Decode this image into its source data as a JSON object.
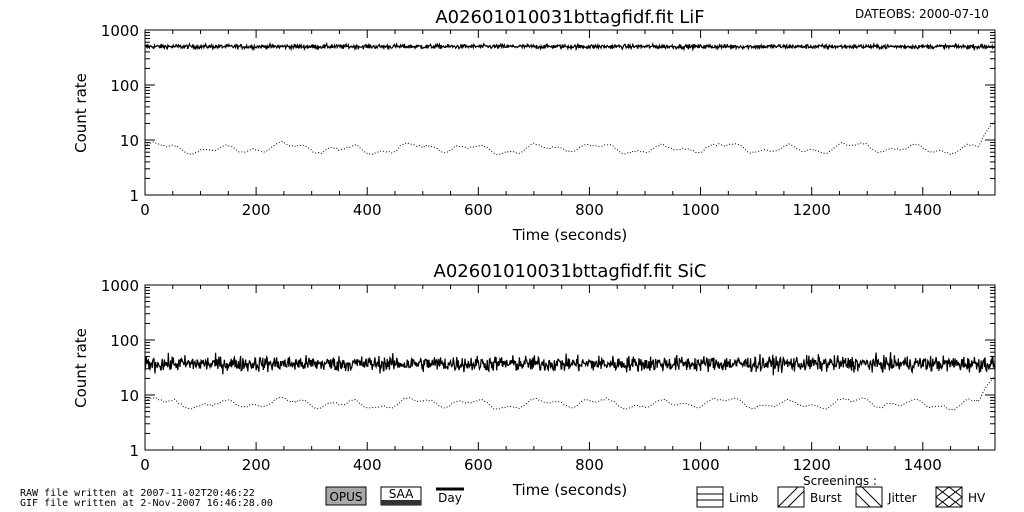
{
  "header": {
    "dateobs": "DATEOBS: 2000-07-10"
  },
  "chart_data": [
    {
      "type": "line",
      "title": "A02601010031bttagfidf.fit  LiF",
      "xlabel": "Time (seconds)",
      "ylabel": "Count rate",
      "yscale": "log",
      "xlim": [
        0,
        1530
      ],
      "ylim": [
        1,
        1000
      ],
      "x_ticks": [
        "0",
        "200",
        "400",
        "600",
        "800",
        "1000",
        "1200",
        "1400"
      ],
      "y_ticks": [
        "1",
        "10",
        "100",
        "1000"
      ],
      "series": [
        {
          "style": "solid",
          "approx_level": 500,
          "scatter": 0.04
        },
        {
          "style": "dotted",
          "approx_level": 7,
          "scatter": 0.1
        }
      ]
    },
    {
      "type": "line",
      "title": "A02601010031bttagfidf.fit  SiC",
      "xlabel": "Time (seconds)",
      "ylabel": "Count rate",
      "yscale": "log",
      "xlim": [
        0,
        1530
      ],
      "ylim": [
        1,
        1000
      ],
      "x_ticks": [
        "0",
        "200",
        "400",
        "600",
        "800",
        "1000",
        "1200",
        "1400"
      ],
      "y_ticks": [
        "1",
        "10",
        "100",
        "1000"
      ],
      "series": [
        {
          "style": "solid",
          "approx_level": 37,
          "scatter": 0.14
        },
        {
          "style": "dotted",
          "approx_level": 7,
          "scatter": 0.1
        }
      ]
    }
  ],
  "footer": {
    "raw_file": "RAW file written at 2007-11-02T20:46:22",
    "gif_file": "GIF file written at  2-Nov-2007 16:46:28.00",
    "opus": "OPUS",
    "saa": "SAA",
    "day": "Day",
    "screenings_title": "Screenings :",
    "screenings": [
      "Limb",
      "Burst",
      "Jitter",
      "HV"
    ]
  }
}
